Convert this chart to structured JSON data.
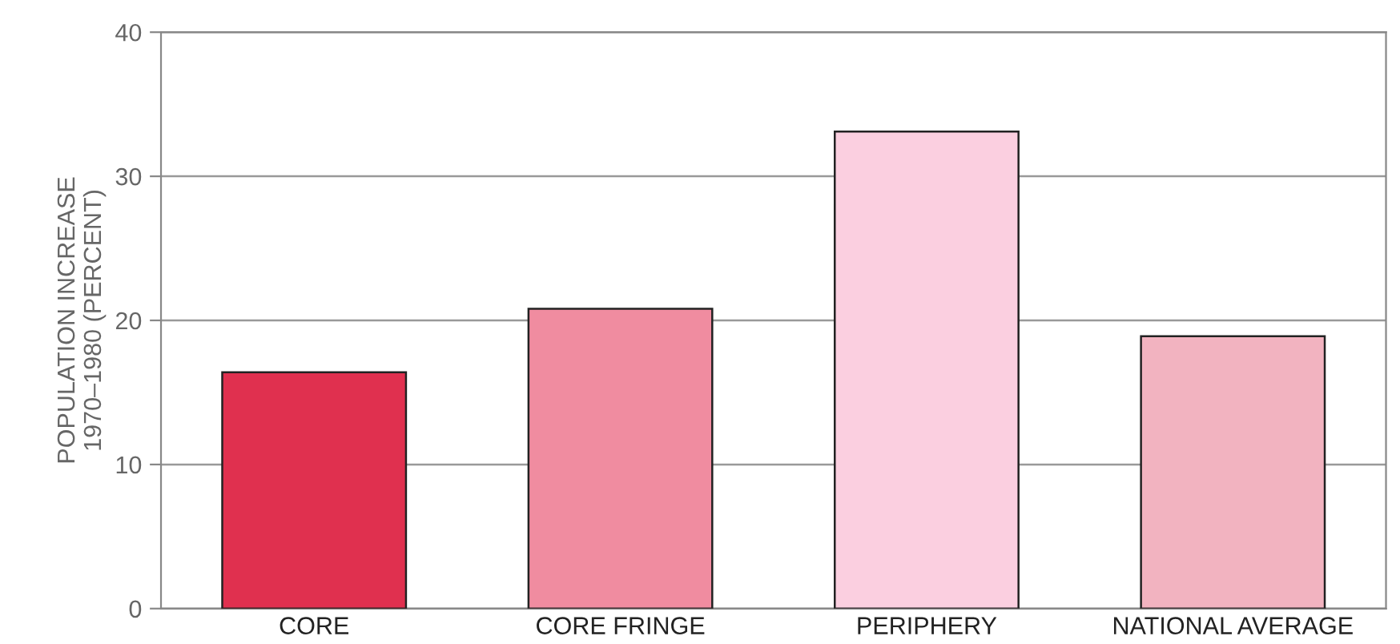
{
  "chart_data": {
    "type": "bar",
    "ylabel": "POPULATION INCREASE\n1970–1980 (PERCENT)",
    "categories": [
      "CORE",
      "CORE FRINGE",
      "PERIPHERY",
      "NATIONAL AVERAGE"
    ],
    "values": [
      16.4,
      20.8,
      33.1,
      18.9
    ],
    "colors": [
      "#e0304f",
      "#f08ca0",
      "#fbcfe0",
      "#f2b3c0"
    ],
    "ylim": [
      0,
      40
    ],
    "yticks": [
      0,
      10,
      20,
      30,
      40
    ],
    "grid": "y"
  }
}
